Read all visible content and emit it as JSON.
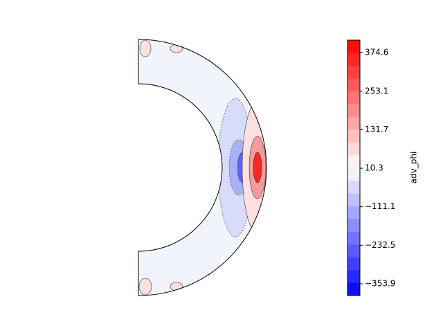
{
  "chart_data": {
    "type": "contour",
    "colorbar_label": "adv_phi",
    "colormap": "bwr",
    "clim": [
      -391,
      414
    ],
    "levels": 20,
    "cticks": [
      {
        "value": -353.9,
        "label": "−353.9"
      },
      {
        "value": -232.5,
        "label": "−232.5"
      },
      {
        "value": -111.1,
        "label": "−111.1"
      },
      10.3,
      131.7,
      253.1,
      374.6
    ]
  }
}
